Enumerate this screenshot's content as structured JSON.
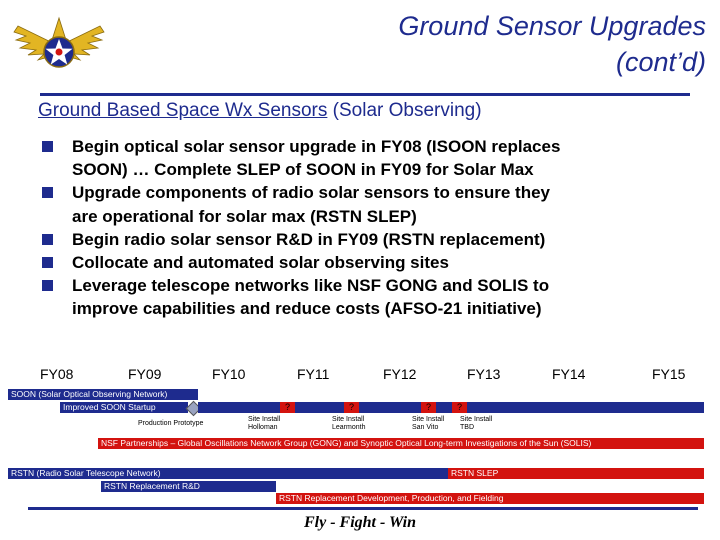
{
  "title": {
    "line1": "Ground Sensor Upgrades",
    "line2": "(cont’d)"
  },
  "subtitle": {
    "main": "Ground Based Space Wx Sensors",
    "paren": " (Solar Observing)"
  },
  "bullets": [
    {
      "line1": "Begin optical solar sensor upgrade in FY08 (ISOON replaces",
      "line2": "SOON) … Complete SLEP of SOON in FY09 for Solar Max"
    },
    {
      "line1": "Upgrade components of radio solar sensors to ensure they",
      "line2": "are operational for solar max (RSTN SLEP)"
    },
    {
      "line1": "Begin radio solar sensor R&D in FY09 (RSTN replacement)"
    },
    {
      "line1": "Collocate and automated solar observing sites"
    },
    {
      "line1": "Leverage telescope networks like NSF GONG and SOLIS to",
      "line2": "improve capabilities and reduce costs (AFSO-21 initiative)"
    }
  ],
  "timeline": {
    "years": [
      "FY08",
      "FY09",
      "FY10",
      "FY11",
      "FY12",
      "FY13",
      "FY14",
      "FY15"
    ],
    "bars": {
      "soon": "SOON (Solar Optical Observing Network)",
      "improved_soon": "Improved SOON Startup",
      "nsf": "NSF Partnerships – Global Oscillations Network Group (GONG) and Synoptic Optical Long-term Investigations of the Sun (SOLIS)",
      "rstn": "RSTN (Radio Solar Telescope Network)",
      "rstn_slep": "RSTN SLEP",
      "rstn_rd": "RSTN Replacement R&D",
      "rstn_dev": "RSTN Replacement Development, Production, and Fielding"
    },
    "notes": {
      "prototype": "Production Prototype",
      "holloman_1": "Site Install",
      "holloman_2": "Holloman",
      "learmonth_1": "Site Install",
      "learmonth_2": "Learmonth",
      "sanvito_1": "Site Install",
      "sanvito_2": "San Vito",
      "tbd_1": "Site Install",
      "tbd_2": "TBD"
    },
    "question_mark": "?"
  },
  "footer": "Fly - Fight - Win",
  "colors": {
    "brand_blue": "#1e2b8e",
    "red": "#d3130f"
  }
}
